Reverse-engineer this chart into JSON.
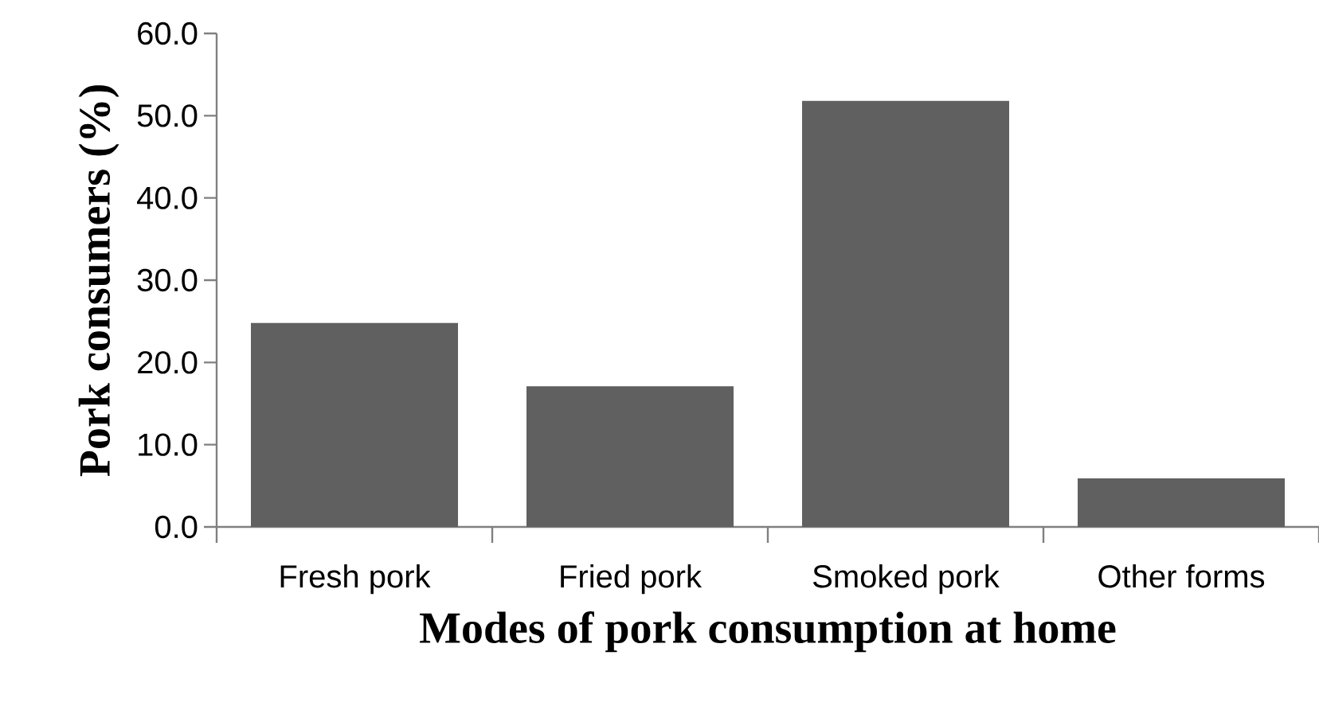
{
  "chart_data": {
    "type": "bar",
    "xlabel": "Modes of pork consumption  at home",
    "ylabel": "Pork  consumers  (%)",
    "categories": [
      "Fresh pork",
      "Fried pork",
      "Smoked pork",
      "Other forms"
    ],
    "values": [
      24.8,
      17.1,
      51.8,
      5.9
    ],
    "color": "#606060",
    "ylim": [
      0,
      60
    ],
    "yticks": [
      {
        "value": 0,
        "label": "0.0"
      },
      {
        "value": 10,
        "label": "10.0"
      },
      {
        "value": 20,
        "label": "20.0"
      },
      {
        "value": 30,
        "label": "30.0"
      },
      {
        "value": 40,
        "label": "40.0"
      },
      {
        "value": 50,
        "label": "50.0"
      },
      {
        "value": 60,
        "label": "60.0"
      }
    ]
  }
}
